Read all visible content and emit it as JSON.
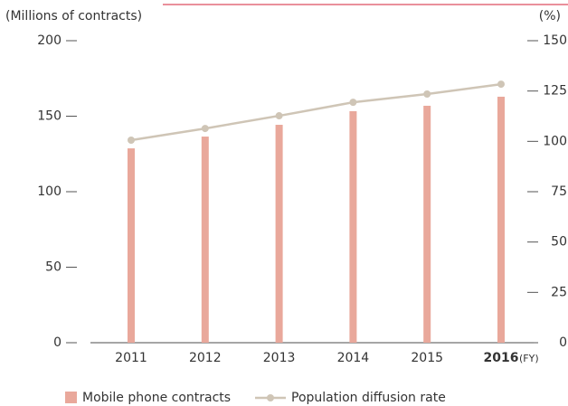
{
  "chart_data": {
    "type": "bar_line",
    "y_axis_label": "(Millions of contracts)",
    "y2_axis_label": "(%)",
    "x_unit": "(FY)",
    "categories": [
      "2011",
      "2012",
      "2013",
      "2014",
      "2015",
      "2016"
    ],
    "series": [
      {
        "name": "Mobile phone contracts",
        "type": "bar",
        "color": "#e9a89b",
        "values": [
          128.7,
          136.5,
          144.3,
          153.3,
          156.9,
          162.9
        ]
      },
      {
        "name": "Population diffusion rate",
        "type": "line",
        "axis": "y2",
        "color": "#cfc5b6",
        "values": [
          100.6,
          106.4,
          112.7,
          119.4,
          123.5,
          128.4
        ]
      }
    ],
    "ylim": [
      0,
      200
    ],
    "yticks": [
      0,
      50,
      100,
      150,
      200
    ],
    "y2lim": [
      0,
      150
    ],
    "y2ticks": [
      0,
      25,
      50,
      75,
      100,
      125,
      150
    ]
  }
}
